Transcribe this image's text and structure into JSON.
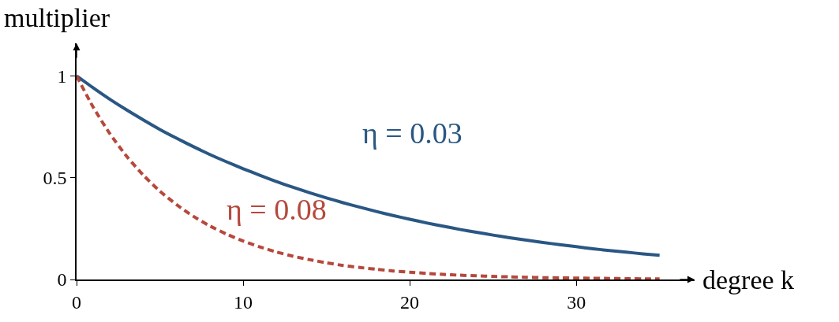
{
  "chart_data": {
    "type": "line",
    "xlabel": "degree k",
    "ylabel": "multiplier",
    "x": [
      0,
      1,
      2,
      3,
      4,
      5,
      6,
      7,
      8,
      9,
      10,
      11,
      12,
      13,
      14,
      15,
      16,
      17,
      18,
      19,
      20,
      21,
      22,
      23,
      24,
      25,
      26,
      27,
      28,
      29,
      30,
      31,
      32,
      33,
      34,
      35
    ],
    "series": [
      {
        "name": "η = 0.03",
        "color": "#2a5783",
        "line_style": "solid",
        "values": [
          1,
          0.941,
          0.885,
          0.833,
          0.784,
          0.737,
          0.694,
          0.653,
          0.614,
          0.578,
          0.544,
          0.512,
          0.481,
          0.453,
          0.426,
          0.401,
          0.377,
          0.355,
          0.334,
          0.314,
          0.296,
          0.278,
          0.262,
          0.246,
          0.232,
          0.218,
          0.205,
          0.193,
          0.182,
          0.171,
          0.161,
          0.151,
          0.142,
          0.134,
          0.126,
          0.119
        ]
      },
      {
        "name": "η = 0.08",
        "color": "#b5493c",
        "line_style": "dashed",
        "values": [
          1,
          0.846,
          0.716,
          0.606,
          0.513,
          0.434,
          0.368,
          0.311,
          0.263,
          0.223,
          0.189,
          0.16,
          0.135,
          0.114,
          0.097,
          0.082,
          0.069,
          0.059,
          0.05,
          0.042,
          0.036,
          0.03,
          0.025,
          0.021,
          0.018,
          0.015,
          0.013,
          0.011,
          0.009,
          0.008,
          0.007,
          0.006,
          0.005,
          0.004,
          0.003,
          0.003
        ]
      }
    ],
    "xlim": [
      0,
      37.1
    ],
    "ylim": [
      0,
      1.16
    ],
    "xticks": [
      0,
      10,
      20,
      30
    ],
    "yticks": [
      0,
      0.5,
      1
    ],
    "legend": false,
    "marker": "none"
  }
}
